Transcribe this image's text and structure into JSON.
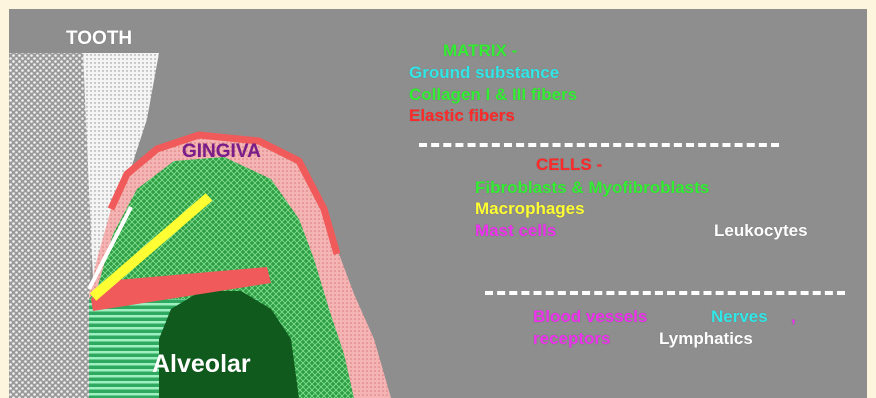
{
  "labels": {
    "tooth": "TOOTH",
    "gingiva": "GINGIVA",
    "alveolar": "Alveolar"
  },
  "matrix": {
    "title": "MATRIX -",
    "items": [
      "Ground substance",
      "Collagen I & III fibers",
      "Elastic fibers"
    ]
  },
  "cells": {
    "title": "CELLS -",
    "items": [
      "Fibroblasts & Myofibroblasts",
      "Macrophages",
      "Mast cells",
      "Leukocytes"
    ]
  },
  "other": {
    "items": [
      "Blood vessels",
      "Nerves",
      ",",
      "receptors",
      "Lymphatics"
    ]
  },
  "colors": {
    "background": "#8e8e8e",
    "page": "#fdf5dd",
    "green": "#33ee33",
    "cyan": "#33e6e6",
    "red": "#ff2a2a",
    "yellow": "#ffff33",
    "magenta": "#ee33ee",
    "white": "#ffffff",
    "purple": "#7a1c8a",
    "gingiva_green": "#2e9e44",
    "dark_green": "#0f5a1c",
    "pink": "#f5b5b5",
    "coral": "#f06060"
  }
}
